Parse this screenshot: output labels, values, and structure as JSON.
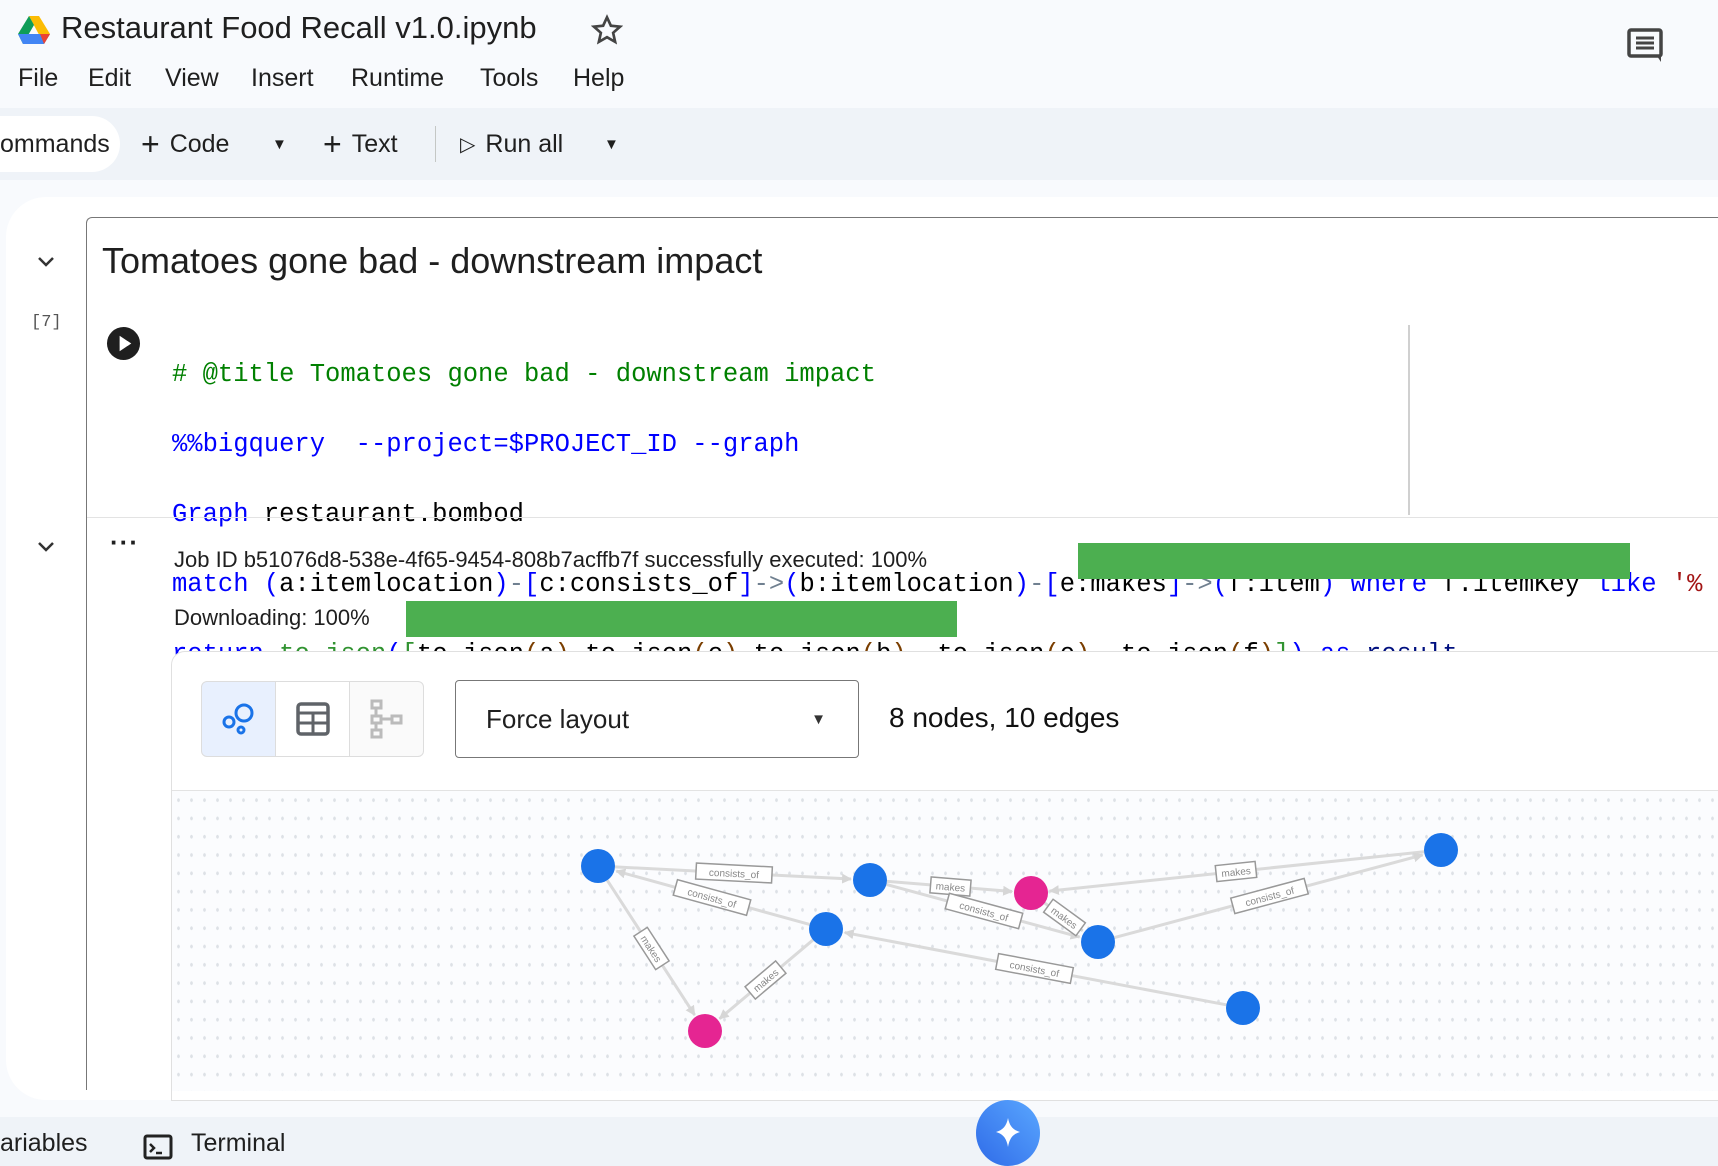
{
  "header": {
    "title": "Restaurant Food Recall v1.0.ipynb",
    "star_icon": "star-icon",
    "comment_icon": "comment-icon"
  },
  "menu": [
    "File",
    "Edit",
    "View",
    "Insert",
    "Runtime",
    "Tools",
    "Help"
  ],
  "toolbar": {
    "commands": "ommands",
    "code": "Code",
    "text": "Text",
    "run_all": "Run all"
  },
  "cell": {
    "heading": "Tomatoes gone bad - downstream impact",
    "exec_count": "[7]",
    "code": {
      "l1": "# @title Tomatoes gone bad - downstream impact",
      "l2a": "%%bigquery",
      "l2b": "  --project=$PROJECT_ID --graph",
      "l3a": "Graph",
      "l3b": " restaurant.bombod",
      "l4": [
        "match",
        " ",
        "(",
        "a:itemlocation",
        ")",
        "-",
        "[",
        "c:consists_of",
        "]",
        "->",
        "(",
        "b:itemlocation",
        ")",
        "-",
        "[",
        "e:makes",
        "]",
        "->",
        "(",
        "f:item",
        ")",
        " ",
        "where",
        " f.itemKey ",
        "like",
        " '%"
      ],
      "l5": [
        "return",
        " ",
        "to_json",
        "(",
        "[",
        "to_json",
        "(",
        "a",
        ")",
        ",",
        "to_json",
        "(",
        "c",
        ")",
        ",",
        "to_json",
        "(",
        "b",
        "), ",
        "to_json",
        "(",
        "e",
        "), ",
        "to_json",
        "(",
        "f",
        ")",
        "]",
        ")",
        " ",
        "as",
        " result"
      ]
    }
  },
  "output": {
    "job_text": "Job  ID  b51076d8-538e-4f65-9454-808b7acffb7f  successfully  executed:  100%",
    "job_progress": 100,
    "download_text": "Downloading:  100%",
    "download_progress": 100,
    "view_modes": [
      "graph-view",
      "table-view",
      "schema-view"
    ],
    "active_view": "graph-view",
    "layout_select": "Force layout",
    "summary": "8 nodes, 10 edges",
    "colors": {
      "itemlocation": "#1a73e8",
      "item": "#e52592",
      "progress": "#4caf50"
    },
    "graph": {
      "nodes": [
        {
          "id": "a",
          "type": "itemlocation"
        },
        {
          "id": "b",
          "type": "itemlocation"
        },
        {
          "id": "c",
          "type": "item"
        },
        {
          "id": "d",
          "type": "itemlocation"
        },
        {
          "id": "e",
          "type": "itemlocation"
        },
        {
          "id": "f",
          "type": "itemlocation"
        },
        {
          "id": "g",
          "type": "itemlocation"
        },
        {
          "id": "h",
          "type": "item"
        }
      ],
      "edges": [
        {
          "from": "a",
          "to": "b",
          "label": "consists_of"
        },
        {
          "from": "d",
          "to": "a",
          "label": "consists_of"
        },
        {
          "from": "a",
          "to": "h",
          "label": "makes"
        },
        {
          "from": "d",
          "to": "h",
          "label": "makes"
        },
        {
          "from": "b",
          "to": "c",
          "label": "makes"
        },
        {
          "from": "b",
          "to": "e",
          "label": "consists_of"
        },
        {
          "from": "c",
          "to": "e",
          "label": "makes"
        },
        {
          "from": "f",
          "to": "c",
          "label": "makes"
        },
        {
          "from": "e",
          "to": "f",
          "label": "consists_of"
        },
        {
          "from": "g",
          "to": "d",
          "label": "consists_of"
        }
      ]
    }
  },
  "bottom": {
    "variables": "ariables",
    "terminal": "Terminal"
  }
}
